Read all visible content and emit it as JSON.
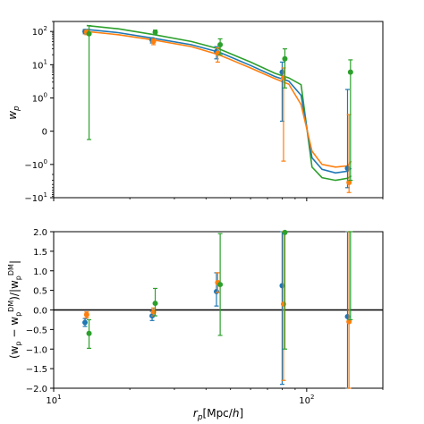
{
  "chart_data": [
    {
      "type": "line",
      "panel": "top",
      "xlabel": "",
      "ylabel": "w_p",
      "xscale": "log",
      "yscale": "symlog",
      "xlim": [
        10,
        200
      ],
      "ylim": [
        -10,
        200
      ],
      "y_ticks": [
        {
          "value": 100,
          "base": "10",
          "exp": "2"
        },
        {
          "value": 10,
          "base": "10",
          "exp": "1"
        },
        {
          "value": 1,
          "base": "10",
          "exp": "0"
        },
        {
          "value": 0,
          "base": "0",
          "exp": ""
        },
        {
          "value": -1,
          "base": "−10",
          "exp": "0"
        },
        {
          "value": -10,
          "base": "−10",
          "exp": "1"
        }
      ],
      "curves": [
        {
          "color": "#2ca02c",
          "x": [
            13.5,
            18,
            25,
            35,
            45,
            60,
            75,
            85,
            95,
            105,
            115,
            130,
            145,
            150
          ],
          "y": [
            150,
            120,
            80,
            50,
            30,
            12,
            5.5,
            4.0,
            2.5,
            -1.2,
            -2.5,
            -3.0,
            -2.6,
            -2.2
          ]
        },
        {
          "color": "#1f77b4",
          "x": [
            13.5,
            18,
            25,
            35,
            45,
            60,
            75,
            85,
            95,
            105,
            115,
            130,
            145,
            150
          ],
          "y": [
            115,
            92,
            62,
            40,
            24,
            9.5,
            4.4,
            3.2,
            1.2,
            -0.8,
            -1.4,
            -1.8,
            -1.6,
            -1.3
          ]
        },
        {
          "color": "#ff7f0e",
          "x": [
            13.5,
            18,
            25,
            35,
            45,
            60,
            75,
            85,
            95,
            105,
            115,
            130,
            145,
            150
          ],
          "y": [
            100,
            80,
            55,
            35,
            20,
            8,
            3.8,
            2.6,
            0.8,
            -0.6,
            -1.0,
            -1.2,
            -1.1,
            -0.9
          ]
        }
      ],
      "series": [
        {
          "color": "#1f77b4",
          "points": [
            {
              "x": 13.3,
              "y": 100,
              "lo": 85,
              "hi": 115
            },
            {
              "x": 24.5,
              "y": 55,
              "lo": 45,
              "hi": 65
            },
            {
              "x": 44,
              "y": 25,
              "lo": 15,
              "hi": 35
            },
            {
              "x": 80,
              "y": 6,
              "lo": 0.3,
              "hi": 12
            },
            {
              "x": 145,
              "y": -1.3,
              "lo": -5,
              "hi": 1.8
            }
          ]
        },
        {
          "color": "#ff7f0e",
          "points": [
            {
              "x": 13.5,
              "y": 95,
              "lo": 80,
              "hi": 110
            },
            {
              "x": 24.8,
              "y": 50,
              "lo": 40,
              "hi": 60
            },
            {
              "x": 44.5,
              "y": 22,
              "lo": 12,
              "hi": 32
            },
            {
              "x": 81,
              "y": 4,
              "lo": -0.9,
              "hi": 8
            },
            {
              "x": 147,
              "y": -3.5,
              "lo": -7,
              "hi": 0.5
            }
          ]
        },
        {
          "color": "#2ca02c",
          "points": [
            {
              "x": 13.8,
              "y": 85,
              "lo": -0.25,
              "hi": 150
            },
            {
              "x": 25.2,
              "y": 95,
              "lo": 80,
              "hi": 110
            },
            {
              "x": 45.5,
              "y": 40,
              "lo": 20,
              "hi": 60
            },
            {
              "x": 82,
              "y": 15,
              "lo": 2,
              "hi": 30
            },
            {
              "x": 149,
              "y": 6,
              "lo": -3,
              "hi": 14
            }
          ]
        }
      ]
    },
    {
      "type": "scatter",
      "panel": "bottom",
      "xlabel": "r_p[Mpc/h]",
      "ylabel": "(w_p − w_p^DM)/|w_p^DM|",
      "xscale": "log",
      "xlim": [
        10,
        200
      ],
      "ylim": [
        -2.0,
        2.0
      ],
      "y_ticks": [
        "−2.0",
        "−1.5",
        "−1.0",
        "−0.5",
        "0.0",
        "0.5",
        "1.0",
        "1.5",
        "2.0"
      ],
      "x_ticks": [
        {
          "value": 10,
          "base": "10",
          "exp": "1"
        },
        {
          "value": 100,
          "base": "10",
          "exp": "2"
        }
      ],
      "hline": 0,
      "series": [
        {
          "color": "#1f77b4",
          "points": [
            {
              "x": 13.3,
              "y": -0.32,
              "lo": -0.42,
              "hi": -0.22
            },
            {
              "x": 24.5,
              "y": -0.15,
              "lo": -0.27,
              "hi": -0.04
            },
            {
              "x": 44,
              "y": 0.47,
              "lo": 0.1,
              "hi": 0.95
            },
            {
              "x": 80,
              "y": 0.62,
              "lo": -1.9,
              "hi": 2.0
            },
            {
              "x": 145,
              "y": -0.17,
              "lo": -2.0,
              "hi": 2.0
            }
          ]
        },
        {
          "color": "#ff7f0e",
          "points": [
            {
              "x": 13.5,
              "y": -0.12,
              "lo": -0.2,
              "hi": -0.05
            },
            {
              "x": 24.8,
              "y": -0.05,
              "lo": -0.15,
              "hi": 0.05
            },
            {
              "x": 44.5,
              "y": 0.7,
              "lo": 0.45,
              "hi": 0.95
            },
            {
              "x": 81,
              "y": 0.15,
              "lo": -1.8,
              "hi": 2.0
            },
            {
              "x": 147,
              "y": -0.3,
              "lo": -2.0,
              "hi": 2.0
            }
          ]
        },
        {
          "color": "#2ca02c",
          "points": [
            {
              "x": 13.8,
              "y": -0.6,
              "lo": -0.98,
              "hi": -0.25
            },
            {
              "x": 25.2,
              "y": 0.17,
              "lo": -0.15,
              "hi": 0.55
            },
            {
              "x": 45.5,
              "y": 0.65,
              "lo": -0.65,
              "hi": 1.95
            },
            {
              "x": 82,
              "y": 1.98,
              "lo": -1.0,
              "hi": 2.0
            },
            {
              "x": 149,
              "y": 2.2,
              "lo": -0.25,
              "hi": 2.0
            }
          ]
        }
      ]
    }
  ]
}
